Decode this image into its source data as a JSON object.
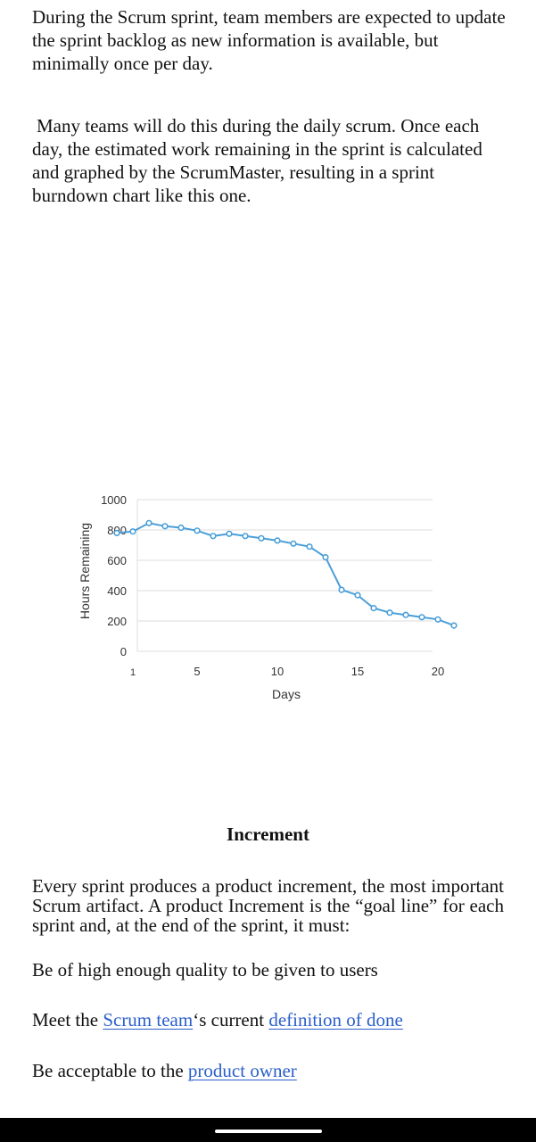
{
  "text": {
    "para1": "During the Scrum sprint, team members are expected to update the sprint backlog as new information is available, but minimally once per day.",
    "para2": "Many teams will do this during the daily scrum. Once each day, the estimated work remaining in the sprint is calculated and graphed by the ScrumMaster, resulting in a sprint burndown chart like this one.",
    "heading": "Increment",
    "para3": "Every sprint produces a product increment, the most important Scrum artifact. A product Increment is the “goal line” for each sprint and, at the end of the sprint, it must:",
    "line1": "Be of high enough quality to be given to users",
    "line2_prefix": "Meet the ",
    "line2_link1": "Scrum team",
    "line2_mid": "‘s current ",
    "line2_link2": "definition of done",
    "line3_prefix": "Be acceptable to the ",
    "line3_link": "product owner"
  },
  "colors": {
    "series": "#4a9fd8",
    "grid": "#dcdcdc",
    "link": "#2a5fcb"
  },
  "chart_data": {
    "type": "line",
    "xlabel": "Days",
    "ylabel": "Hours Remaining",
    "ylim": [
      0,
      1000
    ],
    "xlim": [
      1,
      20
    ],
    "yticks": [
      0,
      200,
      400,
      600,
      800,
      1000
    ],
    "xticks": [
      1,
      5,
      10,
      15,
      20
    ],
    "grid": true,
    "series": [
      {
        "x": [
          0,
          1,
          2,
          3,
          4,
          5,
          6,
          7,
          8,
          9,
          10,
          11,
          12,
          13,
          14,
          15,
          16,
          17,
          18,
          19,
          20,
          21
        ],
        "values": [
          780,
          790,
          845,
          825,
          815,
          795,
          760,
          775,
          760,
          745,
          730,
          710,
          690,
          620,
          405,
          370,
          285,
          255,
          240,
          225,
          210,
          170
        ]
      }
    ]
  }
}
